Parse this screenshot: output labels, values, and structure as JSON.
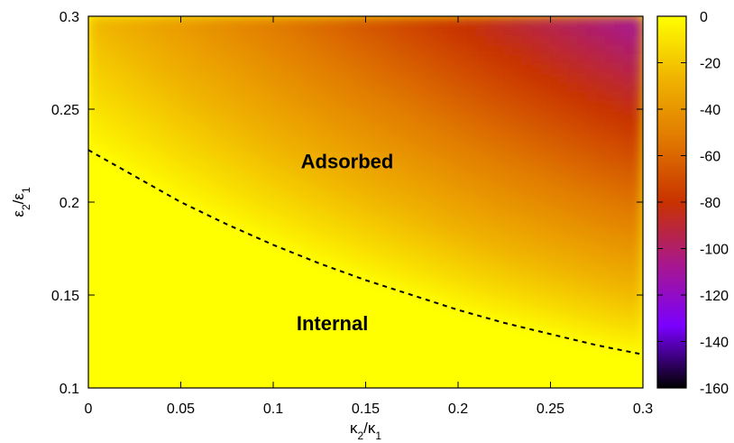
{
  "chart_data": {
    "type": "heatmap",
    "x_label": {
      "num": "κ",
      "num_sub": "2",
      "den": "κ",
      "den_sub": "1"
    },
    "y_label": {
      "num": "ε",
      "num_sub": "2",
      "den": "ε",
      "den_sub": "1"
    },
    "xlim": [
      0,
      0.3
    ],
    "ylim": [
      0.1,
      0.3
    ],
    "x_ticks": [
      "0",
      "0.05",
      "0.1",
      "0.15",
      "0.2",
      "0.25",
      "0.3"
    ],
    "y_ticks": [
      "0.1",
      "0.15",
      "0.2",
      "0.25",
      "0.3"
    ],
    "colorbar": {
      "range": [
        -160,
        0
      ],
      "ticks": [
        "0",
        "-20",
        "-40",
        "-60",
        "-80",
        "-100",
        "-120",
        "-140",
        "-160"
      ],
      "palette": [
        "#000000",
        "#7a00ff",
        "#a8188c",
        "#c83200",
        "#e07800",
        "#f0b400",
        "#ffff00"
      ]
    },
    "regions": [
      {
        "label": "Adsorbed",
        "x": 0.14,
        "y": 0.222
      },
      {
        "label": "Internal",
        "x": 0.132,
        "y": 0.135
      }
    ],
    "boundary": {
      "style": "dashed",
      "x": [
        0,
        0.025,
        0.05,
        0.075,
        0.1,
        0.125,
        0.15,
        0.175,
        0.2,
        0.225,
        0.25,
        0.275,
        0.3
      ],
      "y": [
        0.228,
        0.214,
        0.2,
        0.188,
        0.177,
        0.167,
        0.158,
        0.15,
        0.142,
        0.135,
        0.129,
        0.123,
        0.118
      ]
    }
  }
}
